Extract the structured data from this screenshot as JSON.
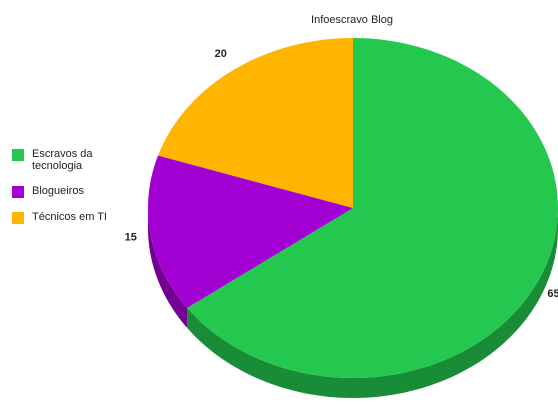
{
  "chart_data": {
    "type": "pie",
    "title": "Infoescravo Blog",
    "categories": [
      "Escravos da tecnologia",
      "Blogueiros",
      "Técnicos em TI"
    ],
    "values": [
      65,
      15,
      20
    ],
    "colors": [
      "#24c84e",
      "#a300d4",
      "#ffb400"
    ],
    "legend": "left"
  }
}
